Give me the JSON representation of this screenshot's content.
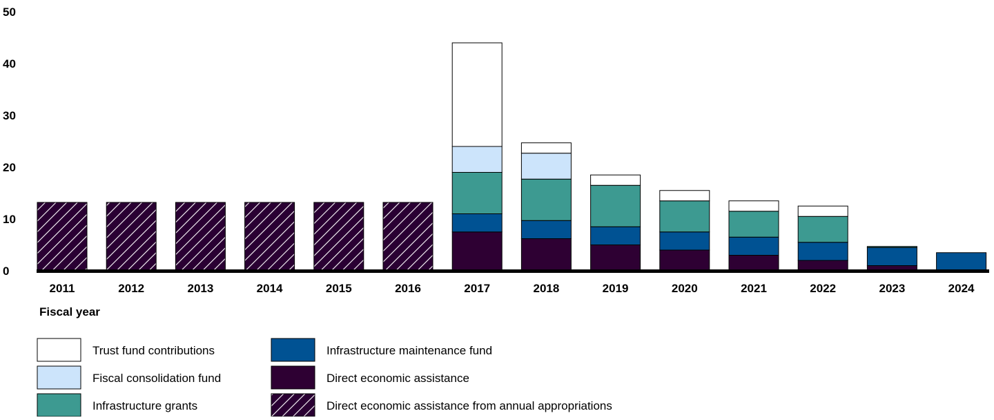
{
  "chart_data": {
    "type": "bar",
    "stacked": true,
    "xlabel": "Fiscal year",
    "ylabel": "",
    "ylim": [
      0,
      50
    ],
    "yticks": [
      0,
      10,
      20,
      30,
      40,
      50
    ],
    "grid": false,
    "legend_position": "bottom",
    "categories": [
      "2011",
      "2012",
      "2013",
      "2014",
      "2015",
      "2016",
      "2017",
      "2018",
      "2019",
      "2020",
      "2021",
      "2022",
      "2023",
      "2024"
    ],
    "series": [
      {
        "name": "Direct economic assistance from annual appropriations",
        "color": "#2a0033",
        "pattern": "hatch",
        "values": [
          13.2,
          13.2,
          13.2,
          13.2,
          13.2,
          13.2,
          0,
          0,
          0,
          0,
          0,
          0,
          0,
          0
        ]
      },
      {
        "name": "Direct economic assistance",
        "color": "#2e0033",
        "values": [
          0,
          0,
          0,
          0,
          0,
          0,
          7.5,
          6.2,
          5.0,
          4.0,
          3.0,
          2.0,
          1.0,
          0
        ]
      },
      {
        "name": "Infrastructure maintenance fund",
        "color": "#005293",
        "values": [
          0,
          0,
          0,
          0,
          0,
          0,
          3.5,
          3.5,
          3.5,
          3.5,
          3.5,
          3.5,
          3.5,
          3.5
        ]
      },
      {
        "name": "Infrastructure grants",
        "color": "#3d9a91",
        "values": [
          0,
          0,
          0,
          0,
          0,
          0,
          8.0,
          8.0,
          8.0,
          6.0,
          5.0,
          5.0,
          0.2,
          0
        ]
      },
      {
        "name": "Fiscal consolidation fund",
        "color": "#cce4fb",
        "values": [
          0,
          0,
          0,
          0,
          0,
          0,
          5.0,
          5.0,
          0,
          0,
          0,
          0,
          0,
          0
        ]
      },
      {
        "name": "Trust fund contributions",
        "color": "#ffffff",
        "values": [
          0,
          0,
          0,
          0,
          0,
          0,
          20.0,
          2.0,
          2.0,
          2.0,
          2.0,
          2.0,
          0,
          0
        ]
      }
    ],
    "legend_order": [
      "Trust fund contributions",
      "Fiscal consolidation fund",
      "Infrastructure grants",
      "Infrastructure maintenance fund",
      "Direct economic assistance",
      "Direct economic assistance from annual appropriations"
    ]
  }
}
